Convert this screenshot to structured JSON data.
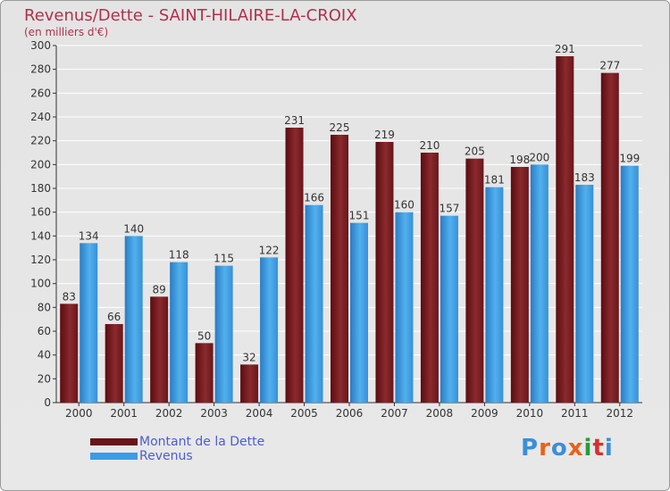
{
  "title": "Revenus/Dette - SAINT-HILAIRE-LA-CROIX",
  "subtitle": "(en milliers d'€)",
  "logo": [
    "P",
    "r",
    "o",
    "x",
    "i",
    "t",
    "i"
  ],
  "logo_colors": [
    "#3a8fd8",
    "#e8621a",
    "#3a8fd8",
    "#e8621a",
    "#2a9a3a",
    "#d8302a",
    "#3a8fd8"
  ],
  "colors": {
    "dette": "#7a1c1f",
    "revenus": "#3c9ce4",
    "grid": "#ffffff",
    "axis": "#333333"
  },
  "chart_data": {
    "type": "bar",
    "categories": [
      "2000",
      "2001",
      "2002",
      "2003",
      "2004",
      "2005",
      "2006",
      "2007",
      "2008",
      "2009",
      "2010",
      "2011",
      "2012"
    ],
    "series": [
      {
        "name": "Montant de la Dette",
        "values": [
          83,
          66,
          89,
          50,
          32,
          231,
          225,
          219,
          210,
          205,
          198,
          291,
          277
        ]
      },
      {
        "name": "Revenus",
        "values": [
          134,
          140,
          118,
          115,
          122,
          166,
          151,
          160,
          157,
          181,
          200,
          183,
          199
        ]
      }
    ],
    "ylim": [
      0,
      300
    ],
    "yticks": [
      0,
      20,
      40,
      60,
      80,
      100,
      120,
      140,
      160,
      180,
      200,
      220,
      240,
      260,
      280,
      300
    ],
    "grid": true,
    "legend": "bottom-left"
  }
}
